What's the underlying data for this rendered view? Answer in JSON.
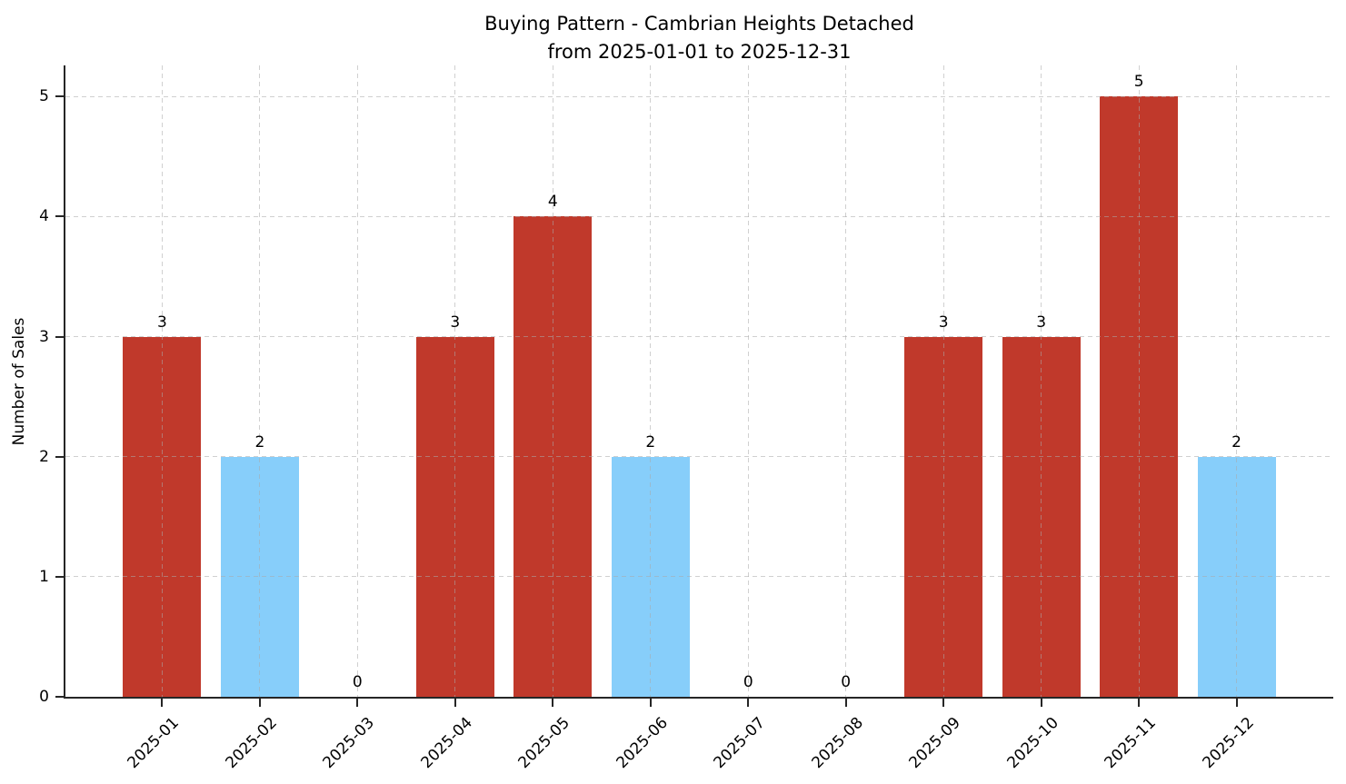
{
  "chart_data": {
    "type": "bar",
    "title": "Buying Pattern - Cambrian Heights Detached\nfrom 2025-01-01 to 2025-12-31",
    "title_line1": "Buying Pattern - Cambrian Heights Detached",
    "title_line2": "from 2025-01-01 to 2025-12-31",
    "xlabel": "",
    "ylabel": "Number of Sales",
    "categories": [
      "2025-01",
      "2025-02",
      "2025-03",
      "2025-04",
      "2025-05",
      "2025-06",
      "2025-07",
      "2025-08",
      "2025-09",
      "2025-10",
      "2025-11",
      "2025-12"
    ],
    "values": [
      3,
      2,
      0,
      3,
      4,
      2,
      0,
      0,
      3,
      3,
      5,
      2
    ],
    "bar_colors": [
      "#c0392b",
      "#87cefa",
      null,
      "#c0392b",
      "#c0392b",
      "#87cefa",
      null,
      null,
      "#c0392b",
      "#c0392b",
      "#c0392b",
      "#87cefa"
    ],
    "value_labels": [
      "3",
      "2",
      "0",
      "3",
      "4",
      "2",
      "0",
      "0",
      "3",
      "3",
      "5",
      "2"
    ],
    "yticks": [
      0,
      1,
      2,
      3,
      4,
      5
    ],
    "ylim": [
      0,
      5.26
    ],
    "grid": true,
    "grid_style": "dashed",
    "legend": "none",
    "palette": {
      "high": "#c0392b",
      "low": "#87cefa"
    }
  }
}
